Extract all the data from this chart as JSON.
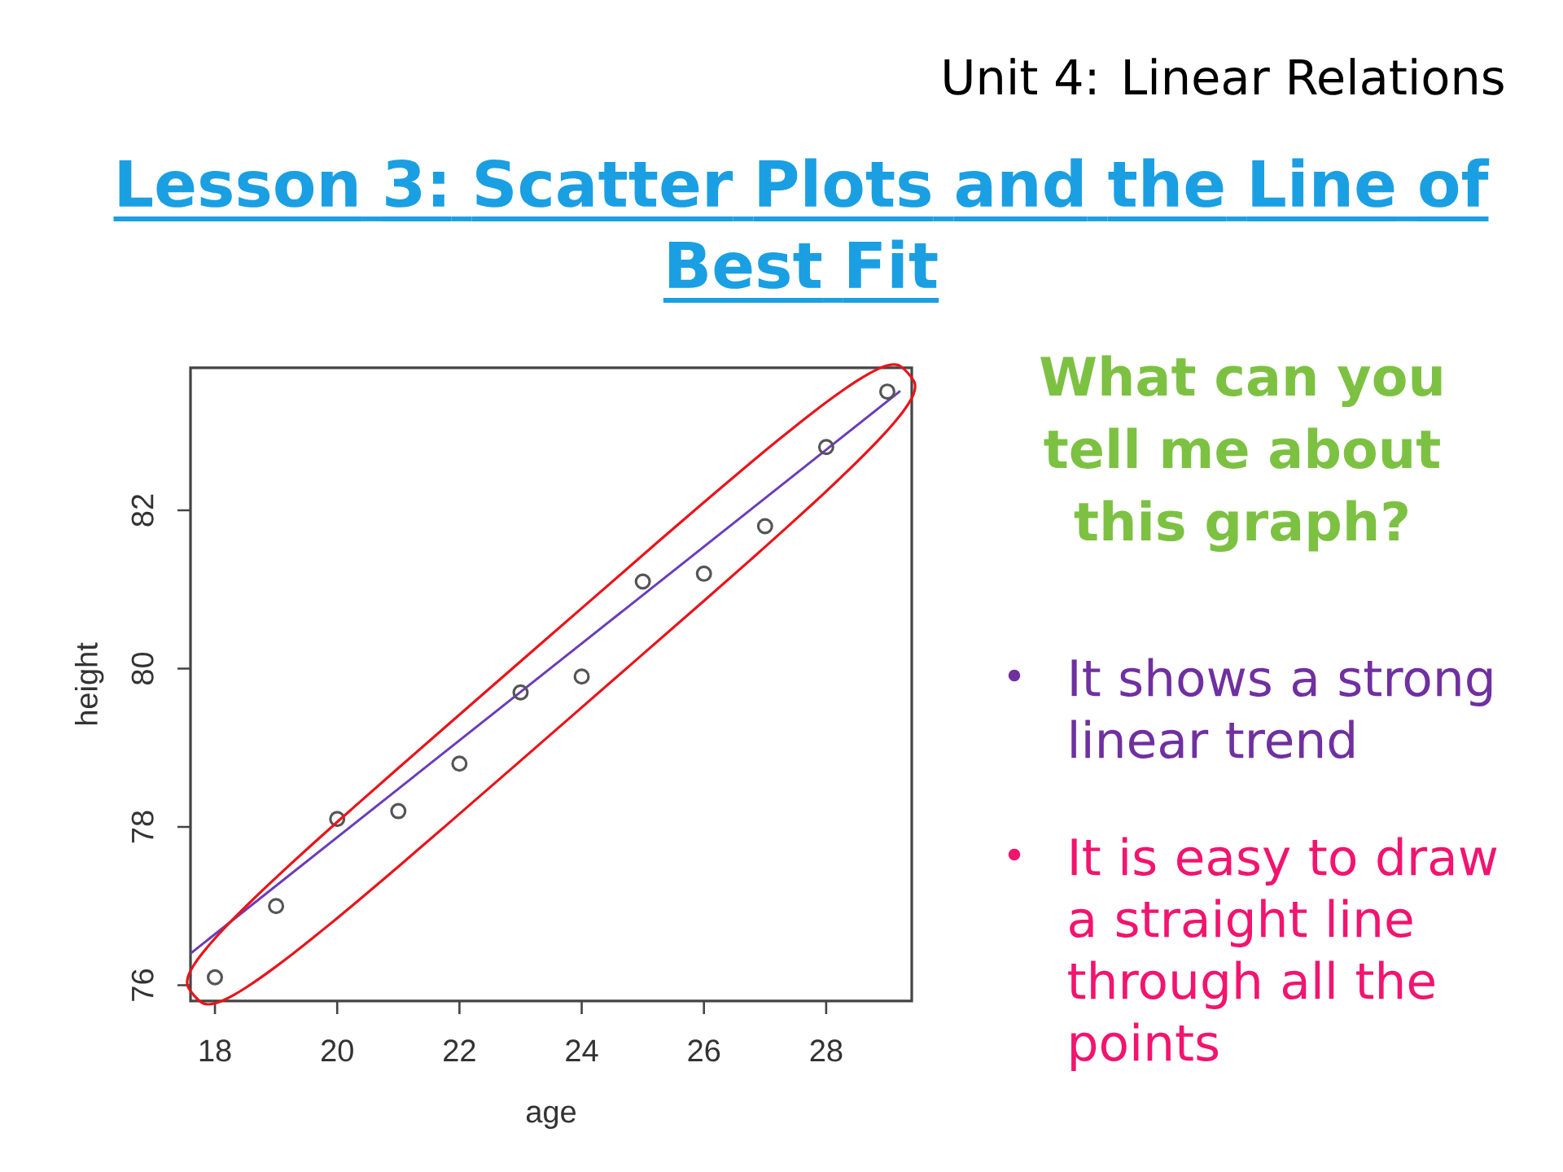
{
  "chart_data": {
    "type": "scatter",
    "title": "Lesson 3: Scatter Plots and the Line of Best Fit",
    "subtitle": "Unit 4: Linear Relations",
    "xlabel": "age",
    "ylabel": "height",
    "x": [
      18,
      19,
      20,
      21,
      22,
      23,
      24,
      25,
      26,
      27,
      28,
      29
    ],
    "series": [
      {
        "color": "#555555",
        "marker": "circle",
        "values": [
          76.1,
          77.0,
          78.1,
          78.2,
          78.8,
          79.7,
          79.9,
          81.1,
          81.2,
          81.8,
          82.8,
          83.5
        ]
      },
      {
        "type": "line",
        "color": "#6a3db8",
        "x": [
          17.6,
          29.2
        ],
        "values": [
          76.4,
          83.5
        ]
      }
    ],
    "xlim": [
      17.6,
      29.4
    ],
    "ylim": [
      75.8,
      83.8
    ],
    "xticks": [
      18,
      20,
      22,
      24,
      26,
      28
    ],
    "yticks": [
      76,
      78,
      80,
      82
    ],
    "annotations": [
      "What can you tell me about this graph?",
      "It shows a strong linear trend",
      "It is easy to draw a straight line through all the points"
    ]
  }
}
